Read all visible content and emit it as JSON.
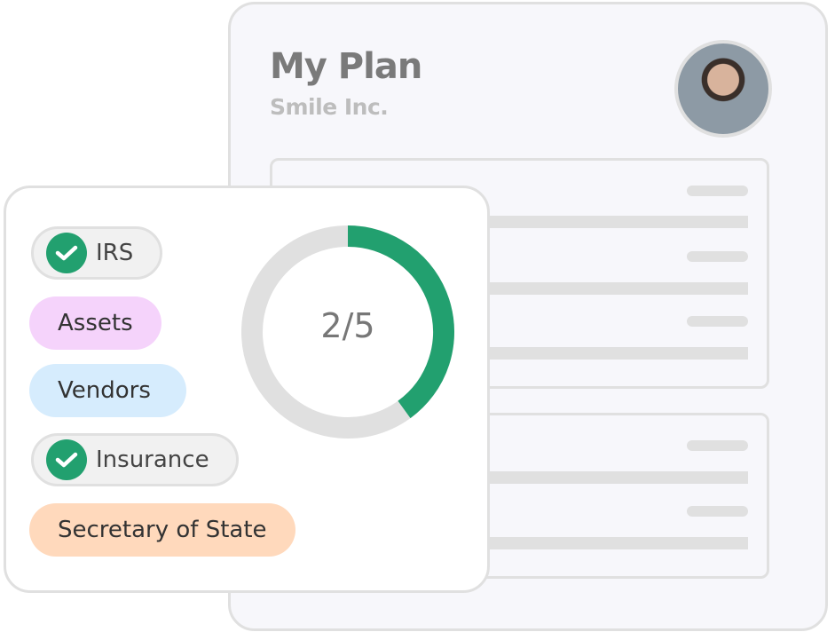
{
  "plan": {
    "title": "My Plan",
    "company": "Smile Inc."
  },
  "progress": {
    "label": "2/5",
    "completed": 2,
    "total": 5,
    "fill_color": "#22a06f",
    "track_color": "#e0e0e0"
  },
  "chips": [
    {
      "label": "IRS",
      "done": true,
      "icon": "check-icon",
      "color": "#f1f1f1"
    },
    {
      "label": "Assets",
      "done": false,
      "color": "#f5d3fb"
    },
    {
      "label": "Vendors",
      "done": false,
      "color": "#d6ecfd"
    },
    {
      "label": "Insurance",
      "done": true,
      "icon": "check-icon",
      "color": "#f1f1f1"
    },
    {
      "label": "Secretary of State",
      "done": false,
      "color": "#ffd9bc"
    }
  ]
}
